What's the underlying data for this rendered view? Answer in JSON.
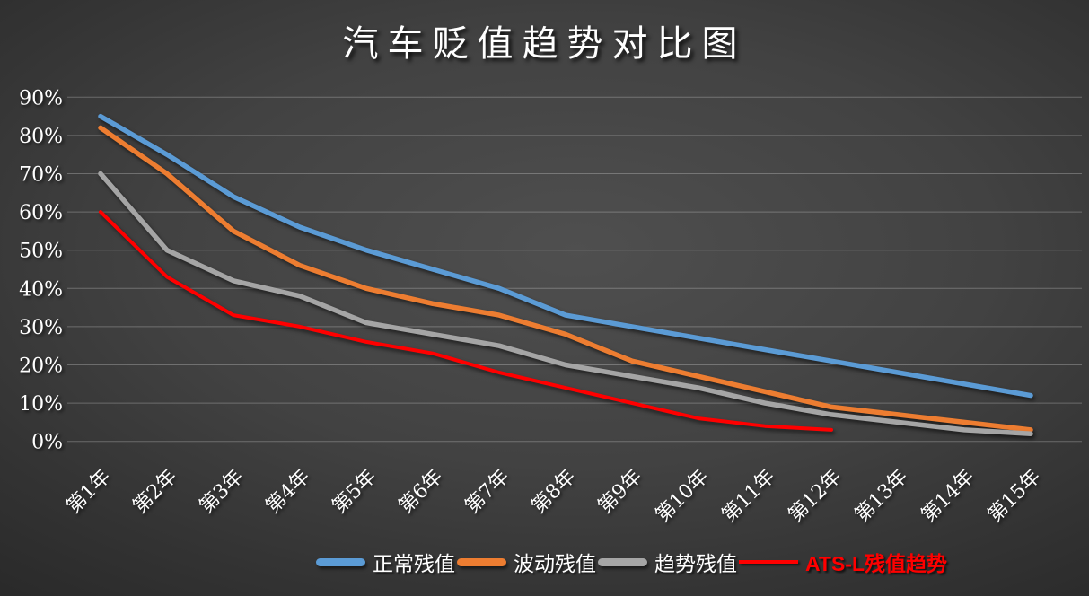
{
  "title": "汽车贬值趋势对比图",
  "chart_data": {
    "type": "line",
    "title": "汽车贬值趋势对比图",
    "xlabel": "",
    "ylabel": "",
    "ylim": [
      0,
      90
    ],
    "y_tick_step": 10,
    "y_ticks": [
      "90%",
      "80%",
      "70%",
      "60%",
      "50%",
      "40%",
      "30%",
      "20%",
      "10%",
      "0%"
    ],
    "grid": true,
    "legend_position": "bottom",
    "background": "dark-gray-gradient",
    "categories": [
      "第1年",
      "第2年",
      "第3年",
      "第4年",
      "第5年",
      "第6年",
      "第7年",
      "第8年",
      "第9年",
      "第10年",
      "第11年",
      "第12年",
      "第13年",
      "第14年",
      "第15年"
    ],
    "series": [
      {
        "name": "正常残值",
        "color": "#5B9BD5",
        "swatch_style": "thick",
        "legend_text_color": "#FFFFFF",
        "legend_bold": false,
        "values": [
          85,
          75,
          64,
          56,
          50,
          45,
          40,
          33,
          30,
          27,
          24,
          21,
          18,
          15,
          12
        ]
      },
      {
        "name": "波动残值",
        "color": "#ED7D31",
        "swatch_style": "thick",
        "legend_text_color": "#FFFFFF",
        "legend_bold": false,
        "values": [
          82,
          70,
          55,
          46,
          40,
          36,
          33,
          28,
          21,
          17,
          13,
          9,
          7,
          5,
          3
        ]
      },
      {
        "name": "趋势残值",
        "color": "#A5A5A5",
        "swatch_style": "thick",
        "legend_text_color": "#FFFFFF",
        "legend_bold": false,
        "values": [
          70,
          50,
          42,
          38,
          31,
          28,
          25,
          20,
          17,
          14,
          10,
          7,
          5,
          3,
          2
        ]
      },
      {
        "name": "ATS-L残值趋势",
        "color": "#FF0000",
        "swatch_style": "thin",
        "legend_text_color": "#FF0000",
        "legend_bold": true,
        "values": [
          60,
          43,
          33,
          30,
          26,
          23,
          18,
          14,
          10,
          6,
          4,
          3
        ]
      }
    ]
  }
}
